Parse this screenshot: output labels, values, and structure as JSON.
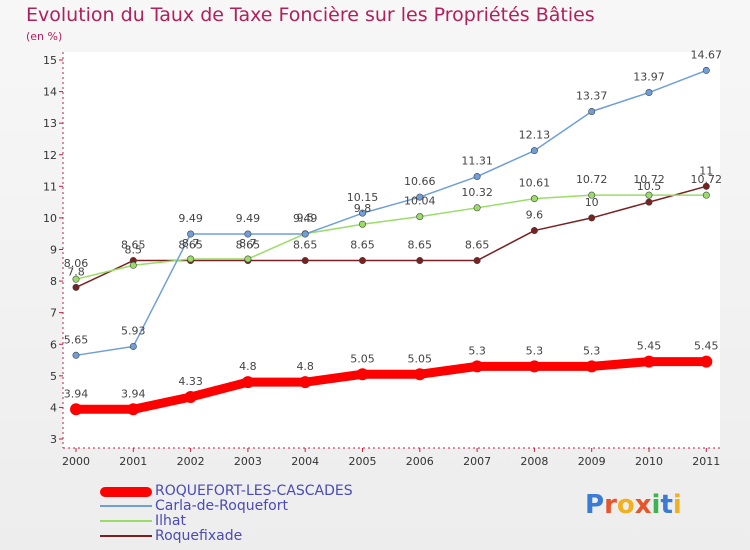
{
  "title": "Evolution du Taux de Taxe Foncière sur les Propriétés Bâties",
  "subtitle": "(en %)",
  "logo_text": "Proxiti",
  "chart_data": {
    "type": "line",
    "title": "Evolution du Taux de Taxe Foncière sur les Propriétés Bâties",
    "ylabel": "(en %)",
    "x": [
      "2000",
      "2001",
      "2002",
      "2003",
      "2004",
      "2005",
      "2006",
      "2007",
      "2008",
      "2009",
      "2010",
      "2011"
    ],
    "ylim": [
      3,
      15
    ],
    "yticks": [
      3,
      4,
      5,
      6,
      7,
      8,
      9,
      10,
      11,
      12,
      13,
      14,
      15
    ],
    "grid": false,
    "legend_position": "bottom",
    "series": [
      {
        "name": "ROQUEFORT-LES-CASCADES",
        "color": "#ff0000",
        "values": [
          3.94,
          3.94,
          4.33,
          4.8,
          4.8,
          5.05,
          5.05,
          5.3,
          5.3,
          5.3,
          5.45,
          5.45
        ],
        "labels": [
          "3.94",
          "3.94",
          "4.33",
          "4.8",
          "4.8",
          "5.05",
          "5.05",
          "5.3",
          "5.3",
          "5.3",
          "5.45",
          "5.45"
        ]
      },
      {
        "name": "Carla-de-Roquefort",
        "color": "#6f9fd8",
        "values": [
          5.65,
          5.93,
          9.49,
          9.49,
          9.49,
          10.15,
          10.66,
          11.31,
          12.13,
          13.37,
          13.97,
          14.67
        ],
        "labels": [
          "5.65",
          "5.93",
          "9.49",
          "9.49",
          "9.49",
          "10.15",
          "10.66",
          "11.31",
          "12.13",
          "13.37",
          "13.97",
          "14.67"
        ]
      },
      {
        "name": "Ilhat",
        "color": "#99dd66",
        "values": [
          8.06,
          8.5,
          8.7,
          8.7,
          9.5,
          9.8,
          10.04,
          10.32,
          10.61,
          10.72,
          10.72,
          10.72
        ],
        "labels": [
          "8.06",
          "8.5",
          "8.7",
          "8.7",
          "9.5",
          "9.8",
          "10.04",
          "10.32",
          "10.61",
          "10.72",
          "10.72",
          "10.72"
        ]
      },
      {
        "name": "Roquefixade",
        "color": "#7a2020",
        "values": [
          7.8,
          8.65,
          8.65,
          8.65,
          8.65,
          8.65,
          8.65,
          8.65,
          9.6,
          10,
          10.5,
          11
        ],
        "labels": [
          "7.8",
          "8.65",
          "8.65",
          "8.65",
          "8.65",
          "8.65",
          "8.65",
          "8.65",
          "9.6",
          "10",
          "10.5",
          "11"
        ]
      }
    ]
  }
}
